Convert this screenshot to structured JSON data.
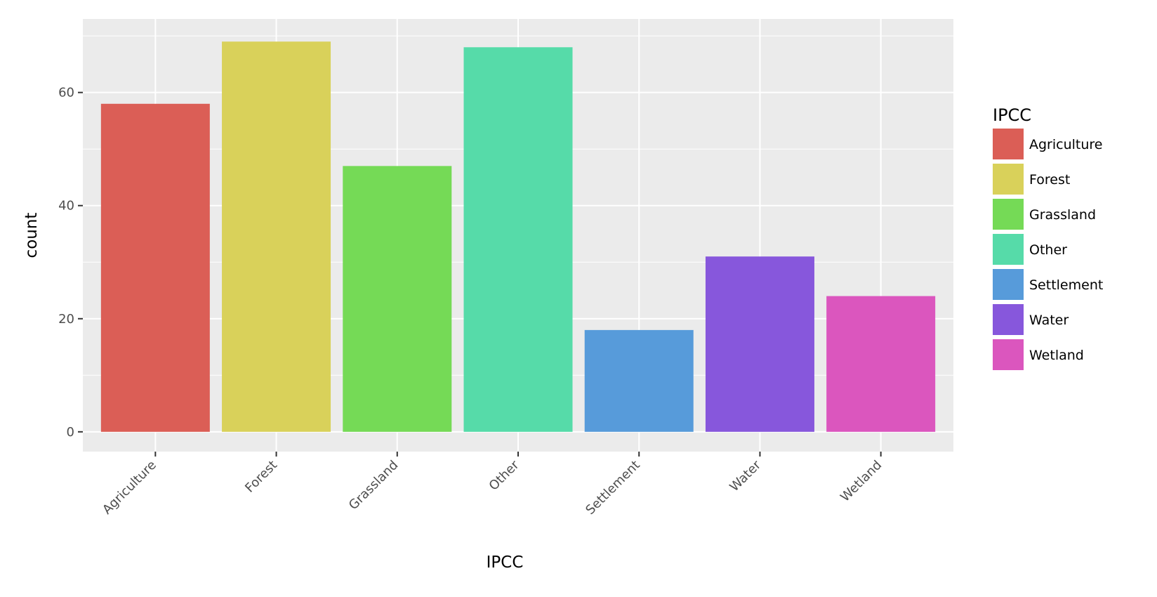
{
  "chart_data": {
    "type": "bar",
    "categories": [
      "Agriculture",
      "Forest",
      "Grassland",
      "Other",
      "Settlement",
      "Water",
      "Wetland"
    ],
    "values": [
      58,
      69,
      47,
      68,
      18,
      31,
      24
    ],
    "colors": [
      "#db5e56",
      "#d9d15a",
      "#75da56",
      "#56dba9",
      "#579bda",
      "#8757dc",
      "#db56be"
    ],
    "xlabel": "IPCC",
    "ylabel": "count",
    "ylim": [
      -3.5,
      73
    ],
    "yticks": [
      "0",
      "20",
      "40",
      "60"
    ],
    "grid": true,
    "legend": {
      "title": "IPCC",
      "position": "right",
      "entries": [
        "Agriculture",
        "Forest",
        "Grassland",
        "Other",
        "Settlement",
        "Water",
        "Wetland"
      ]
    }
  }
}
